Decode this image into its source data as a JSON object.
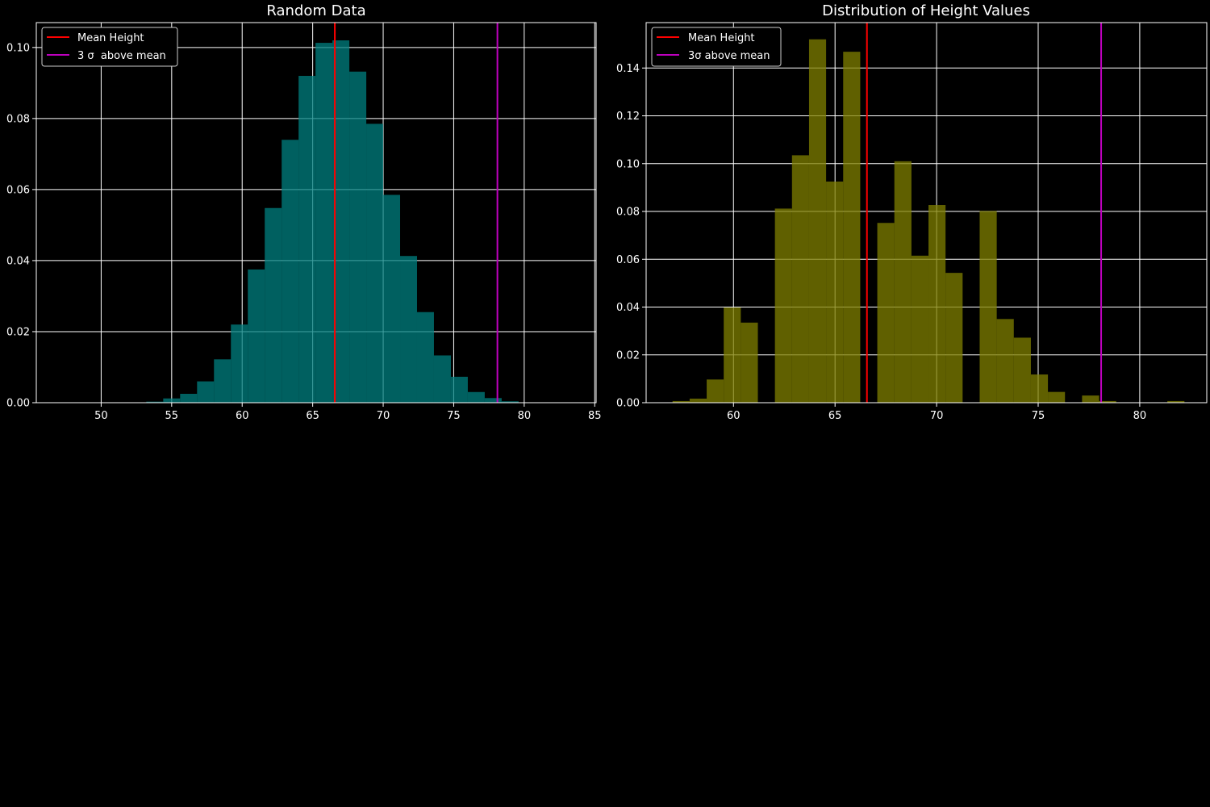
{
  "chart_data": [
    {
      "type": "bar",
      "title": "Random Data",
      "xlabel": "",
      "ylabel": "",
      "xlim": [
        45.4,
        85.1
      ],
      "ylim": [
        0,
        0.107
      ],
      "xticks": [
        50,
        55,
        60,
        65,
        70,
        75,
        80,
        85
      ],
      "yticks": [
        0.0,
        0.02,
        0.04,
        0.06,
        0.08,
        0.1
      ],
      "ytick_decimals": 2,
      "grid": true,
      "bar_color": "#008080",
      "bins": {
        "edges": [
          53.2,
          54.4,
          55.6,
          56.8,
          58.0,
          59.2,
          60.4,
          61.6,
          62.8,
          64.0,
          65.2,
          66.4,
          67.6,
          68.8,
          70.0,
          71.2,
          72.4,
          73.6,
          74.8,
          76.0,
          77.2,
          78.4,
          79.6
        ],
        "values": [
          0.0003,
          0.0012,
          0.0025,
          0.006,
          0.0122,
          0.022,
          0.0375,
          0.0548,
          0.074,
          0.092,
          0.1013,
          0.102,
          0.0932,
          0.0785,
          0.0585,
          0.0413,
          0.0255,
          0.0133,
          0.0073,
          0.003,
          0.0013,
          0.0004
        ]
      },
      "vlines": [
        {
          "x": 66.57,
          "color": "#ff0000",
          "label": "Mean Height"
        },
        {
          "x": 78.1,
          "color": "#bf00bf",
          "label": "3 σ  above mean"
        }
      ],
      "legend_position": "top-left"
    },
    {
      "type": "bar",
      "title": "Distribution of Height Values",
      "xlabel": "",
      "ylabel": "",
      "xlim": [
        55.7,
        83.3
      ],
      "ylim": [
        0,
        0.159
      ],
      "xticks": [
        60,
        65,
        70,
        75,
        80
      ],
      "yticks": [
        0.0,
        0.02,
        0.04,
        0.06,
        0.08,
        0.1,
        0.12,
        0.14
      ],
      "ytick_decimals": 2,
      "grid": true,
      "bar_color": "#808000",
      "bins": {
        "edges": [
          57.0,
          57.84,
          58.68,
          59.52,
          60.36,
          61.2,
          62.04,
          62.88,
          63.72,
          64.56,
          65.4,
          66.24,
          67.08,
          67.92,
          68.76,
          69.6,
          70.44,
          71.28,
          72.12,
          72.96,
          73.8,
          74.64,
          75.48,
          76.32,
          77.16,
          78.0,
          78.84,
          79.68,
          80.52,
          81.36,
          82.2
        ],
        "values": [
          0.0007,
          0.0017,
          0.0097,
          0.0398,
          0.0335,
          0.0,
          0.0812,
          0.1035,
          0.152,
          0.0925,
          0.1468,
          0.0,
          0.0752,
          0.101,
          0.0615,
          0.0827,
          0.0543,
          0.0,
          0.0802,
          0.035,
          0.0272,
          0.0118,
          0.0045,
          0.0,
          0.003,
          0.0007,
          0.0,
          0.0,
          0.0,
          0.0007
        ]
      },
      "vlines": [
        {
          "x": 66.57,
          "color": "#ff0000",
          "label": "Mean Height"
        },
        {
          "x": 78.1,
          "color": "#bf00bf",
          "label": "3σ above mean"
        }
      ],
      "legend_position": "top-left"
    }
  ]
}
